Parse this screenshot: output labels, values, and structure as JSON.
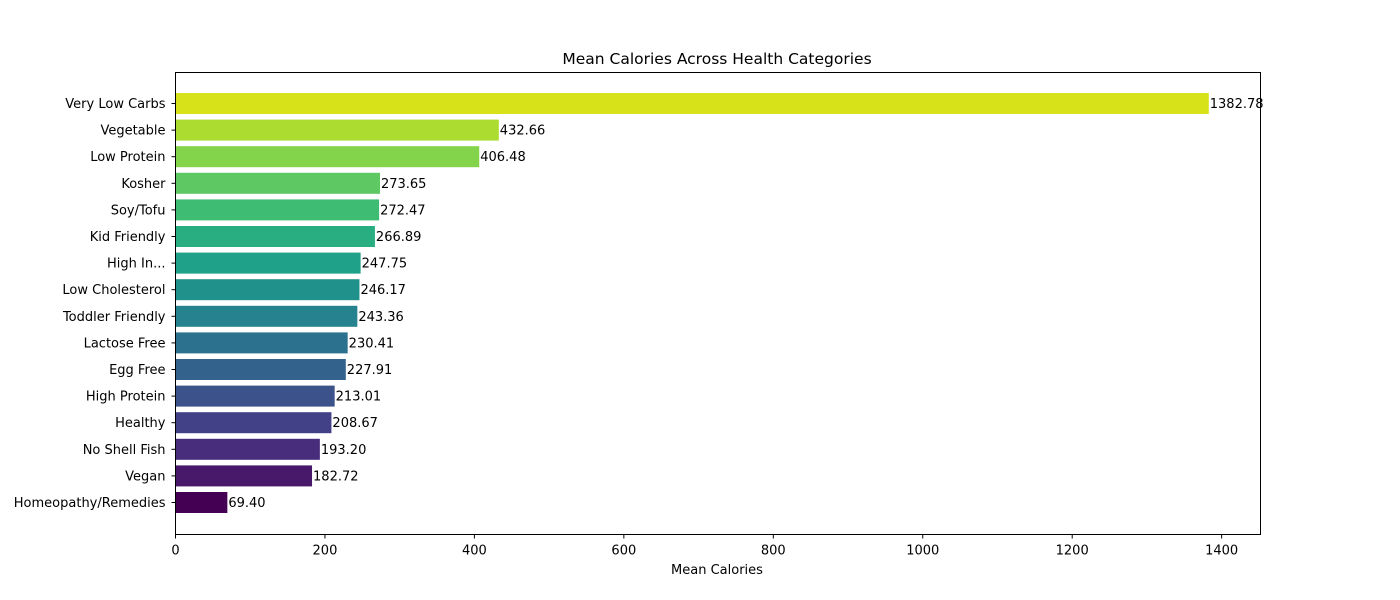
{
  "chart_data": {
    "type": "bar",
    "orientation": "horizontal",
    "title": "Mean Calories Across Health Categories",
    "xlabel": "Mean Calories",
    "ylabel": "",
    "xlim": [
      0,
      1452
    ],
    "x_ticks": [
      0,
      200,
      400,
      600,
      800,
      1000,
      1200,
      1400
    ],
    "grid": false,
    "categories": [
      "Very Low Carbs",
      "Vegetable",
      "Low Protein",
      "Kosher",
      "Soy/Tofu",
      "Kid Friendly",
      "High In...",
      "Low Cholesterol",
      "Toddler Friendly",
      "Lactose Free",
      "Egg Free",
      "High Protein",
      "Healthy",
      "No Shell Fish",
      "Vegan",
      "Homeopathy/Remedies"
    ],
    "values": [
      1382.78,
      432.66,
      406.48,
      273.65,
      272.47,
      266.89,
      247.75,
      246.17,
      243.36,
      230.41,
      227.91,
      213.01,
      208.67,
      193.2,
      182.72,
      69.4
    ],
    "value_labels": [
      "1382.78",
      "432.66",
      "406.48",
      "273.65",
      "272.47",
      "266.89",
      "247.75",
      "246.17",
      "243.36",
      "230.41",
      "227.91",
      "213.01",
      "208.67",
      "193.20",
      "182.72",
      "69.40"
    ],
    "colors": [
      "#d8e219",
      "#addc30",
      "#84d44b",
      "#5ec962",
      "#3fbc73",
      "#28ae80",
      "#1fa088",
      "#21918c",
      "#26828e",
      "#2c728e",
      "#33638d",
      "#3b528b",
      "#424086",
      "#472d7b",
      "#48186a",
      "#440154"
    ]
  }
}
